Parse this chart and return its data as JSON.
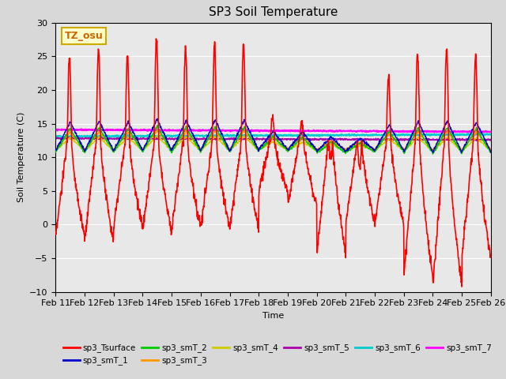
{
  "title": "SP3 Soil Temperature",
  "xlabel": "Time",
  "ylabel": "Soil Temperature (C)",
  "ylim": [
    -10,
    30
  ],
  "xlim": [
    0,
    15
  ],
  "background_color": "#e8e8e8",
  "fig_background": "#d8d8d8",
  "annotation_text": "TZ_osu",
  "annotation_fg": "#cc6600",
  "annotation_bg": "#ffffcc",
  "annotation_edge": "#ccaa00",
  "series_colors": {
    "sp3_Tsurface": "#ff0000",
    "sp3_smT_1": "#0000cc",
    "sp3_smT_2": "#00cc00",
    "sp3_smT_3": "#ff9900",
    "sp3_smT_4": "#cccc00",
    "sp3_smT_5": "#aa00aa",
    "sp3_smT_6": "#00cccc",
    "sp3_smT_7": "#ff00ff"
  },
  "yticks": [
    -10,
    -5,
    0,
    5,
    10,
    15,
    20,
    25,
    30
  ],
  "xtick_labels": [
    "Feb 11",
    "Feb 12",
    "Feb 13",
    "Feb 14",
    "Feb 15",
    "Feb 16",
    "Feb 17",
    "Feb 18",
    "Feb 19",
    "Feb 20",
    "Feb 21",
    "Feb 22",
    "Feb 23",
    "Feb 24",
    "Feb 25",
    "Feb 26"
  ],
  "xtick_positions": [
    0,
    1,
    2,
    3,
    4,
    5,
    6,
    7,
    8,
    9,
    10,
    11,
    12,
    13,
    14,
    15
  ]
}
